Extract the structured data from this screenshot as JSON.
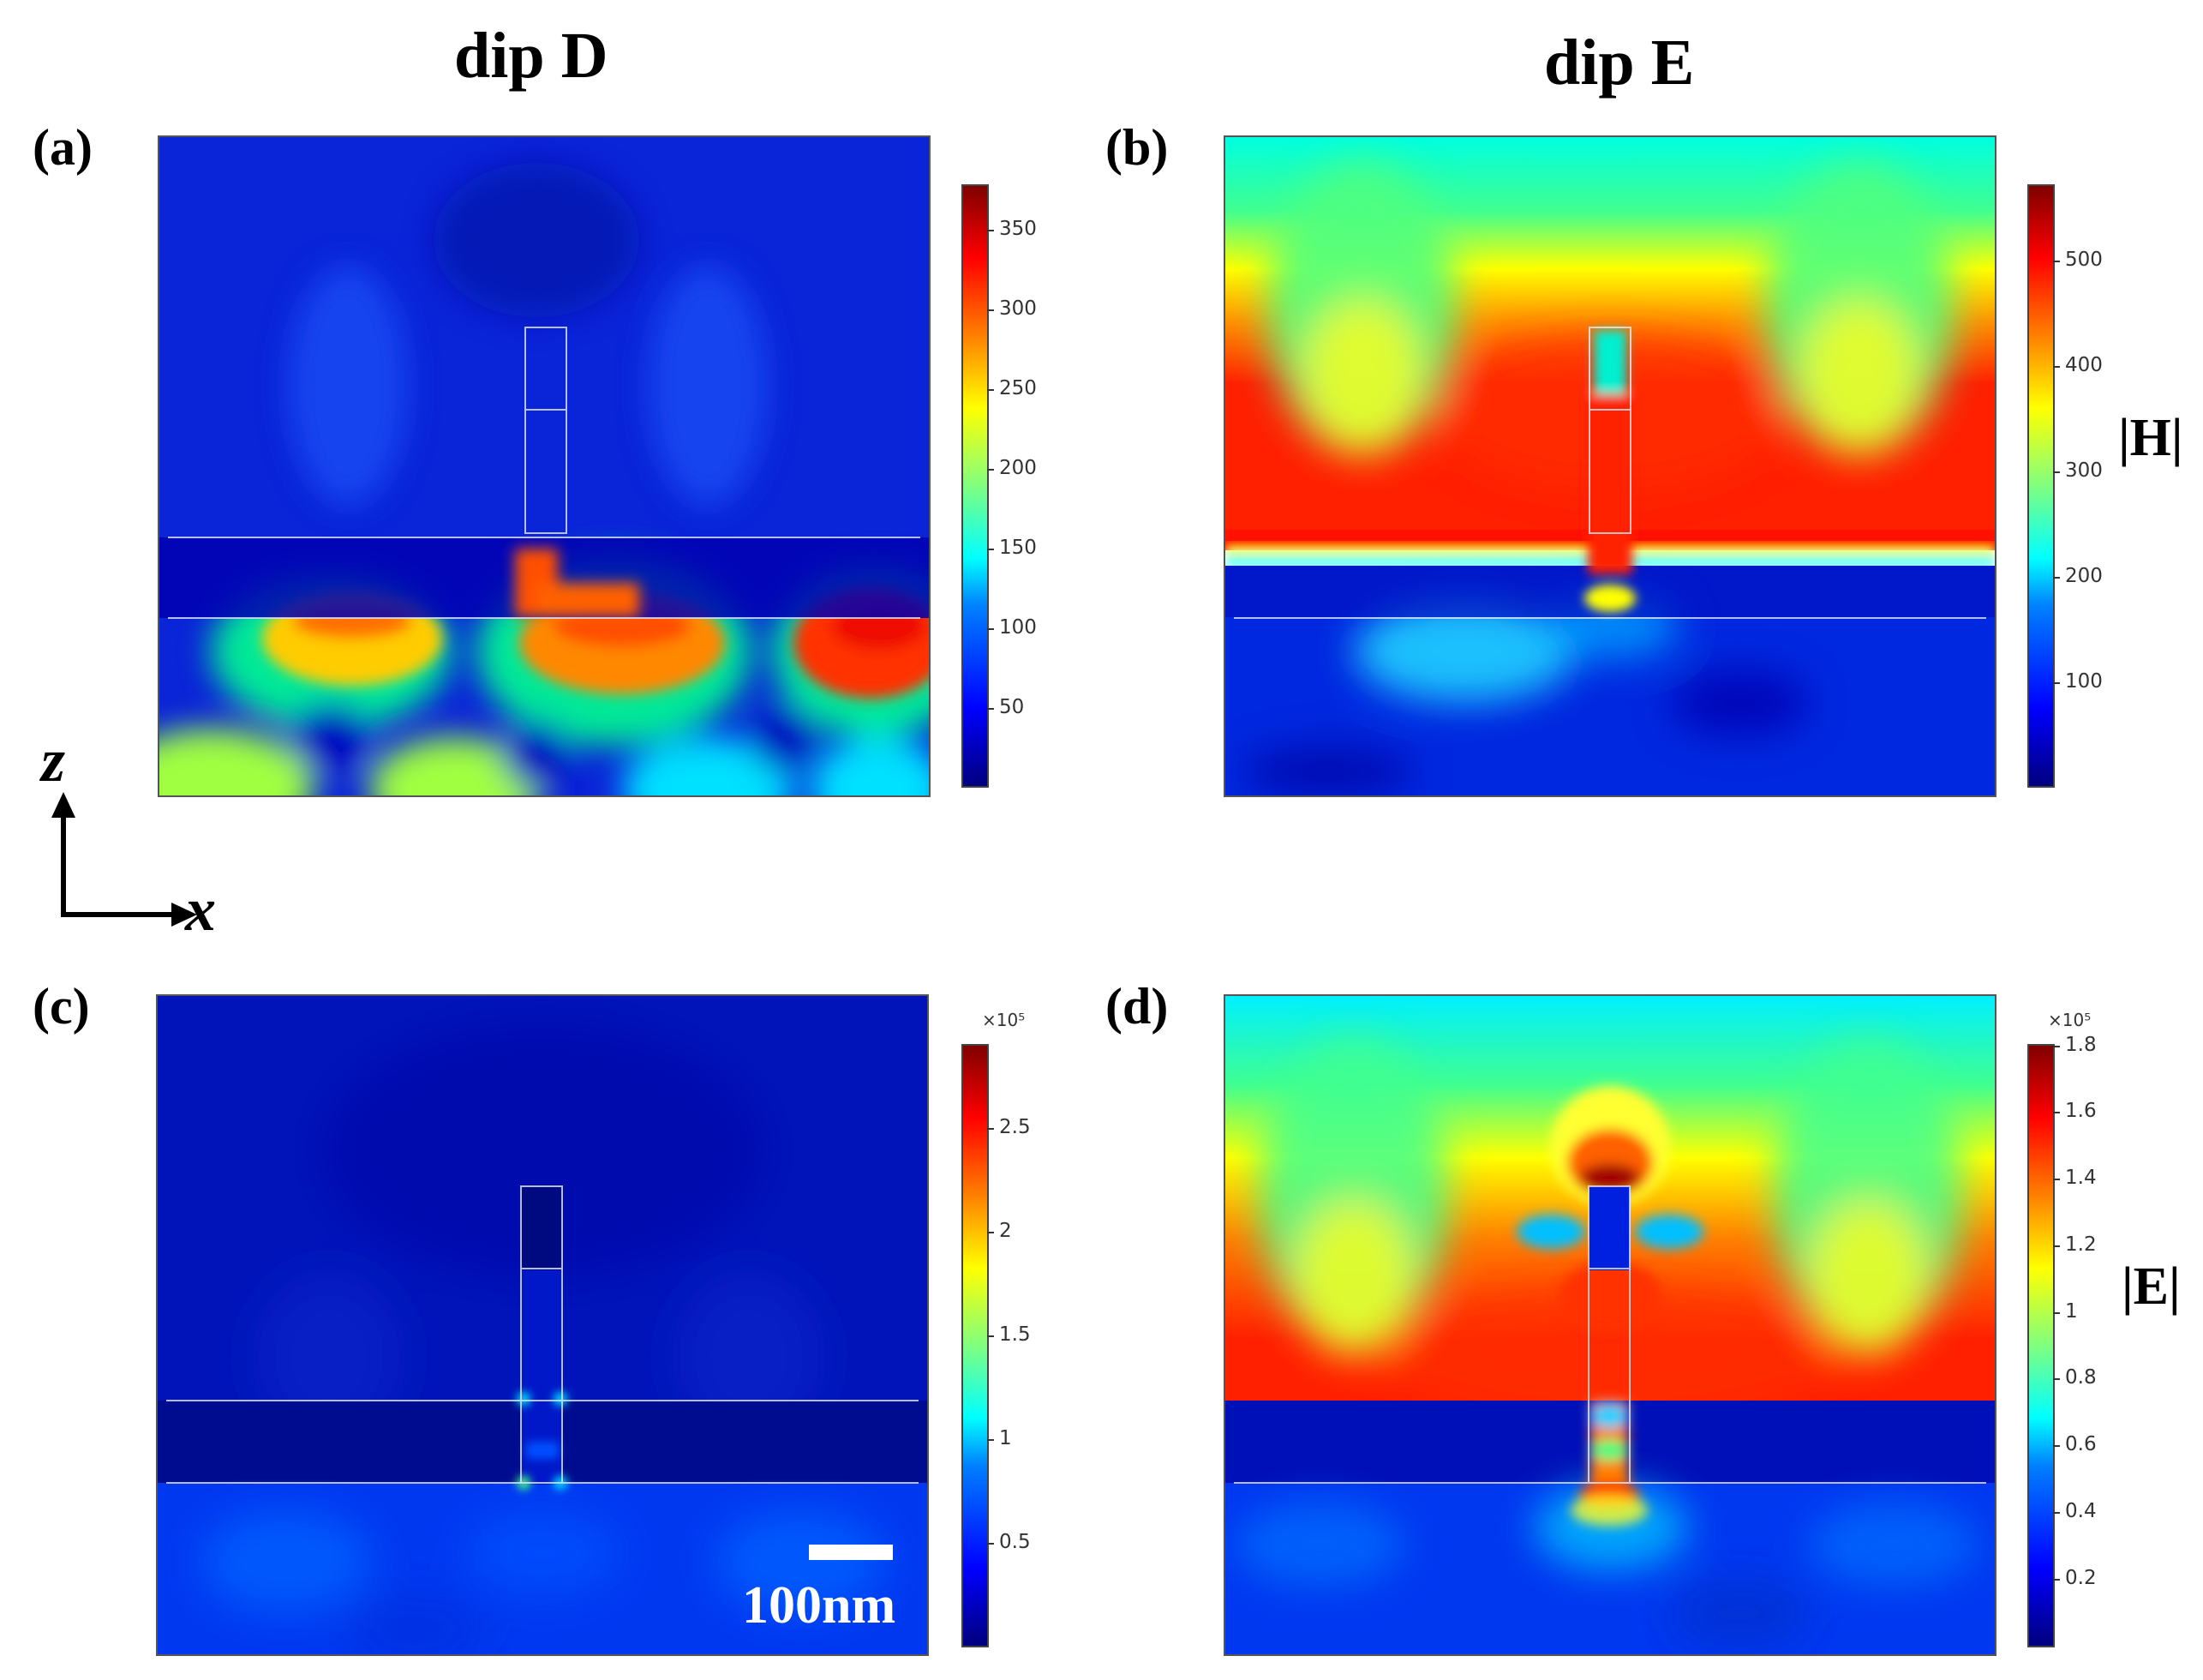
{
  "columns": {
    "left": "dip D",
    "right": "dip E"
  },
  "panels": {
    "a": {
      "label": "(a)",
      "colorbar": {
        "ticks": [
          "350",
          "300",
          "250",
          "200",
          "150",
          "100",
          "50"
        ],
        "max": 380
      }
    },
    "b": {
      "label": "(b)",
      "colorbar": {
        "ticks": [
          "500",
          "400",
          "300",
          "200",
          "100"
        ],
        "max": 570
      },
      "quantity": "|H|"
    },
    "c": {
      "label": "(c)",
      "colorbar": {
        "exponent": "×10⁵",
        "ticks": [
          "2.5",
          "2",
          "1.5",
          "1",
          "0.5"
        ],
        "max": 2.9
      }
    },
    "d": {
      "label": "(d)",
      "colorbar": {
        "exponent": "×10⁵",
        "ticks": [
          "1.8",
          "1.6",
          "1.4",
          "1.2",
          "1",
          "0.8",
          "0.6",
          "0.4",
          "0.2"
        ],
        "max": 1.8
      },
      "quantity": "|E|"
    }
  },
  "axes": {
    "vertical": "z",
    "horizontal": "x"
  },
  "scale_bar": {
    "label": "100nm"
  },
  "colors": {
    "dark_blue": "#00007f",
    "blue": "#0000ff",
    "cyan": "#00ffff",
    "green": "#80ff80",
    "yellow": "#ffff00",
    "orange": "#ff8000",
    "red": "#ff0000",
    "dark_red": "#800000"
  }
}
